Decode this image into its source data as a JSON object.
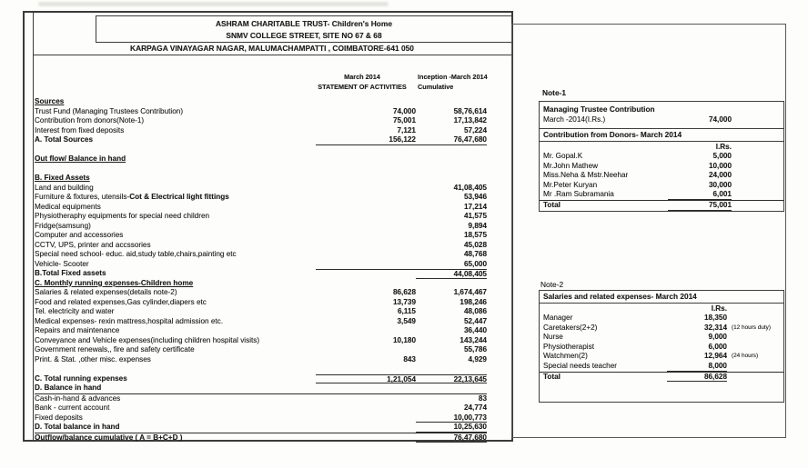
{
  "header": {
    "org_name": "ASHRAM CHARITABLE TRUST-  Children's Home",
    "street": "SNMV COLLEGE STREET, SITE NO 67 & 68",
    "address": "KARPAGA VINAYAGAR NAGAR, MALUMACHAMPATTI , COIMBATORE-641 050"
  },
  "columns": {
    "month_line1": "March  2014",
    "month_line2": "STATEMENT OF ACTIVITIES",
    "cumulative_line1": "Inception -March  2014",
    "cumulative_line2": "Cumulative"
  },
  "statement_rows": [
    {
      "cls": "sec",
      "label": "Sources"
    },
    {
      "label": "Trust Fund (Managing Trustees Contribution)",
      "v1": "74,000",
      "v2": "58,76,614"
    },
    {
      "label": "Contribution from donors(Note-1)",
      "v1": "75,001",
      "v2": "17,13,842"
    },
    {
      "label": "Interest from fixed deposits",
      "v1": "7,121",
      "v2": "57,224"
    },
    {
      "cls": "b ub",
      "label": "A. Total Sources",
      "v1": "156,122",
      "v2": "76,47,680"
    },
    {
      "cls": "blank"
    },
    {
      "cls": "sec",
      "label": "Out flow/ Balance in hand"
    },
    {
      "cls": "blank"
    },
    {
      "cls": "sec",
      "label": "B. Fixed Assets"
    },
    {
      "label": "Land and building",
      "v2": "41,08,405"
    },
    {
      "label": "Furniture & fixtures, utensils-",
      "label_bold": "Cot & Electrical light fittings",
      "v2": "53,946"
    },
    {
      "label": "Medical equipments",
      "v2": "17,214"
    },
    {
      "label": "Physiotheraphy equipments for special need children",
      "v2": "41,575"
    },
    {
      "label": "Fridge(samsung)",
      "v2": "9,894"
    },
    {
      "label": "Computer and accessories",
      "v2": "18,575"
    },
    {
      "label": "CCTV, UPS, printer and accssories",
      "v2": "45,028"
    },
    {
      "label": "Special need school- educ. aid,study table,chairs,painting etc",
      "v2": "48,768"
    },
    {
      "label": "Vehicle- Scooter",
      "v2": "65,000"
    },
    {
      "cls": "b ub ua",
      "label": "B.Total Fixed assets",
      "v2": "44,08,405"
    },
    {
      "cls": "sec",
      "label": "C. Monthly running expenses-Children home"
    },
    {
      "label": "Salaries & related expenses(details note-2)",
      "v1": "86,628",
      "v2": "1,674,467"
    },
    {
      "label": "Food and related expenses,Gas cylinder,diapers etc",
      "v1": "13,739",
      "v2": "198,246"
    },
    {
      "label": "Tel. electricity and water",
      "v1": "6,115",
      "v2": "48,086"
    },
    {
      "label": "Medical expenses- rexin mattress,hospital admission etc.",
      "v1": "3,549",
      "v2": "52,447"
    },
    {
      "label": "Repairs and maintenance",
      "v2": "36,440"
    },
    {
      "label": "Conveyance and Vehicle expenses(including children hospital visits)",
      "v1": "10,180",
      "v2": "143,244"
    },
    {
      "label": "Government renewals,, fire and safety certificate",
      "v2": "55,786"
    },
    {
      "label": "Print. & Stat. ,other misc. expenses",
      "v1": "843",
      "v2": "4,929"
    },
    {
      "cls": "blank"
    },
    {
      "cls": "b ub ua",
      "label": "C. Total running expenses",
      "v1": "1,21,054",
      "v2": "22,13,645"
    },
    {
      "cls": "b rb",
      "label": "D. Balance in hand"
    },
    {
      "label": "Cash-in-hand & advances",
      "v2": "83"
    },
    {
      "label": "Bank - current account",
      "v2": "24,774"
    },
    {
      "cls": "ub",
      "label": "Fixed deposits",
      "v2": "10,00,773"
    },
    {
      "cls": "b ub",
      "label": "D. Total balance in hand",
      "v2": "10,25,630"
    },
    {
      "cls": "b ra ub",
      "label": "Outflow/balance cumulative ( A = B+C+D )",
      "v2": "76,47,680"
    }
  ],
  "note1": {
    "title": "Note-1",
    "managing": {
      "heading": "Managing Trustee Contribution",
      "row_label": "March -2014(I.Rs.)",
      "amount": "74,000"
    },
    "donors_heading": "Contribution from Donors- March 2014",
    "currency_label": "I.Rs.",
    "donors": [
      {
        "name": "Mr. Gopal.K",
        "amount": "5,000"
      },
      {
        "name": "Mr.John Mathew",
        "amount": "10,000"
      },
      {
        "name": "Miss.Neha & Mstr.Neehar",
        "amount": "24,000"
      },
      {
        "name": "Mr.Peter Kuryan",
        "amount": "30,000"
      },
      {
        "cls": "ubn",
        "name": "Mr .Ram Subramania",
        "amount": "6,001"
      },
      {
        "cls": "ntotal",
        "name": "Total",
        "amount": "75,001"
      }
    ]
  },
  "note2": {
    "title": "Note-2",
    "heading": "Salaries and related expenses- March 2014",
    "currency_label": "I.Rs.",
    "rows": [
      {
        "name": "Manager",
        "amount": "18,350",
        "note": ""
      },
      {
        "name": "Caretakers(2+2)",
        "amount": "32,314",
        "note": "(12 hours duty)"
      },
      {
        "name": "Nurse",
        "amount": "9,000",
        "note": ""
      },
      {
        "name": "Physiotherapist",
        "amount": "6,000",
        "note": ""
      },
      {
        "name": "Watchmen(2)",
        "amount": "12,964",
        "note": "(24 hours)"
      },
      {
        "cls": "ubn",
        "name": "Special needs teacher",
        "amount": "8,000",
        "note": ""
      },
      {
        "cls": "ntotal",
        "name": "Total",
        "amount": "86,628",
        "note": ""
      }
    ]
  }
}
